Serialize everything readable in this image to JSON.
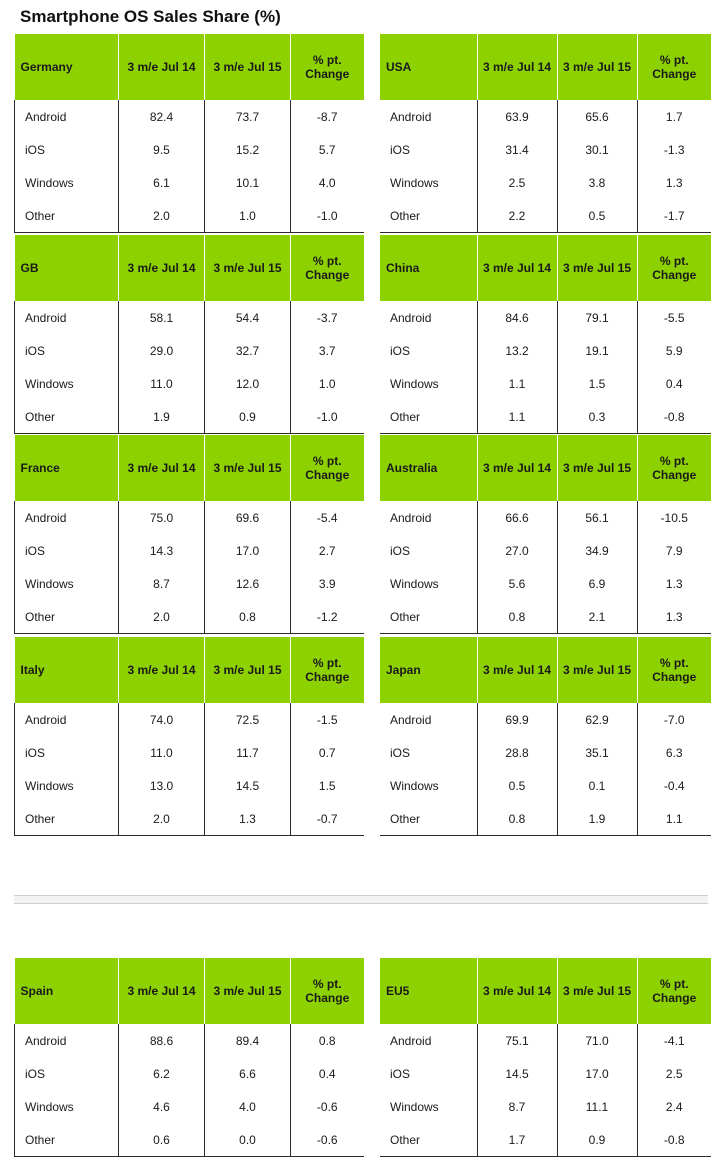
{
  "title": "Smartphone OS Sales Share (%)",
  "chart_data": {
    "type": "table",
    "title": "Smartphone OS Sales Share (%)",
    "columns": [
      "3 m/e Jul 14",
      "3 m/e Jul 15",
      "% pt. Change"
    ],
    "tables": [
      {
        "region": "Germany",
        "headers": [
          "3 m/e Jul 14",
          "3 m/e Jul 15",
          "% pt. Change"
        ],
        "rows": [
          {
            "os": "Android",
            "jul14": "82.4",
            "jul15": "73.7",
            "change": "-8.7"
          },
          {
            "os": "iOS",
            "jul14": "9.5",
            "jul15": "15.2",
            "change": "5.7"
          },
          {
            "os": "Windows",
            "jul14": "6.1",
            "jul15": "10.1",
            "change": "4.0"
          },
          {
            "os": "Other",
            "jul14": "2.0",
            "jul15": "1.0",
            "change": "-1.0"
          }
        ]
      },
      {
        "region": "USA",
        "headers": [
          "3 m/e Jul 14",
          "3 m/e Jul 15",
          "% pt. Change"
        ],
        "rows": [
          {
            "os": "Android",
            "jul14": "63.9",
            "jul15": "65.6",
            "change": "1.7"
          },
          {
            "os": "iOS",
            "jul14": "31.4",
            "jul15": "30.1",
            "change": "-1.3"
          },
          {
            "os": "Windows",
            "jul14": "2.5",
            "jul15": "3.8",
            "change": "1.3"
          },
          {
            "os": "Other",
            "jul14": "2.2",
            "jul15": "0.5",
            "change": "-1.7"
          }
        ]
      },
      {
        "region": "GB",
        "headers": [
          "3 m/e Jul 14",
          "3 m/e Jul 15",
          "% pt. Change"
        ],
        "rows": [
          {
            "os": "Android",
            "jul14": "58.1",
            "jul15": "54.4",
            "change": "-3.7"
          },
          {
            "os": "iOS",
            "jul14": "29.0",
            "jul15": "32.7",
            "change": "3.7"
          },
          {
            "os": "Windows",
            "jul14": "11.0",
            "jul15": "12.0",
            "change": "1.0"
          },
          {
            "os": "Other",
            "jul14": "1.9",
            "jul15": "0.9",
            "change": "-1.0"
          }
        ]
      },
      {
        "region": "China",
        "headers": [
          "3 m/e Jul 14",
          "3 m/e Jul 15",
          "% pt. Change"
        ],
        "rows": [
          {
            "os": "Android",
            "jul14": "84.6",
            "jul15": "79.1",
            "change": "-5.5"
          },
          {
            "os": "iOS",
            "jul14": "13.2",
            "jul15": "19.1",
            "change": "5.9"
          },
          {
            "os": "Windows",
            "jul14": "1.1",
            "jul15": "1.5",
            "change": "0.4"
          },
          {
            "os": "Other",
            "jul14": "1.1",
            "jul15": "0.3",
            "change": "-0.8"
          }
        ]
      },
      {
        "region": "France",
        "headers": [
          "3 m/e Jul 14",
          "3 m/e Jul 15",
          "% pt. Change"
        ],
        "rows": [
          {
            "os": "Android",
            "jul14": "75.0",
            "jul15": "69.6",
            "change": "-5.4"
          },
          {
            "os": "iOS",
            "jul14": "14.3",
            "jul15": "17.0",
            "change": "2.7"
          },
          {
            "os": "Windows",
            "jul14": "8.7",
            "jul15": "12.6",
            "change": "3.9"
          },
          {
            "os": "Other",
            "jul14": "2.0",
            "jul15": "0.8",
            "change": "-1.2"
          }
        ]
      },
      {
        "region": "Australia",
        "headers": [
          "3 m/e Jul 14",
          "3 m/e Jul 15",
          "% pt. Change"
        ],
        "rows": [
          {
            "os": "Android",
            "jul14": "66.6",
            "jul15": "56.1",
            "change": "-10.5"
          },
          {
            "os": "iOS",
            "jul14": "27.0",
            "jul15": "34.9",
            "change": "7.9"
          },
          {
            "os": "Windows",
            "jul14": "5.6",
            "jul15": "6.9",
            "change": "1.3"
          },
          {
            "os": "Other",
            "jul14": "0.8",
            "jul15": "2.1",
            "change": "1.3"
          }
        ]
      },
      {
        "region": "Italy",
        "headers": [
          "3 m/e Jul 14",
          "3 m/e Jul 15",
          "% pt. Change"
        ],
        "rows": [
          {
            "os": "Android",
            "jul14": "74.0",
            "jul15": "72.5",
            "change": "-1.5"
          },
          {
            "os": "iOS",
            "jul14": "11.0",
            "jul15": "11.7",
            "change": "0.7"
          },
          {
            "os": "Windows",
            "jul14": "13.0",
            "jul15": "14.5",
            "change": "1.5"
          },
          {
            "os": "Other",
            "jul14": "2.0",
            "jul15": "1.3",
            "change": "-0.7"
          }
        ]
      },
      {
        "region": "Japan",
        "headers": [
          "3 m/e Jul 14",
          "3 m/e Jul 15",
          "% pt. Change"
        ],
        "rows": [
          {
            "os": "Android",
            "jul14": "69.9",
            "jul15": "62.9",
            "change": "-7.0"
          },
          {
            "os": "iOS",
            "jul14": "28.8",
            "jul15": "35.1",
            "change": "6.3"
          },
          {
            "os": "Windows",
            "jul14": "0.5",
            "jul15": "0.1",
            "change": "-0.4"
          },
          {
            "os": "Other",
            "jul14": "0.8",
            "jul15": "1.9",
            "change": "1.1"
          }
        ]
      },
      {
        "region": "Spain",
        "headers": [
          "3 m/e Jul 14",
          "3 m/e Jul 15",
          "% pt. Change"
        ],
        "rows": [
          {
            "os": "Android",
            "jul14": "88.6",
            "jul15": "89.4",
            "change": "0.8"
          },
          {
            "os": "iOS",
            "jul14": "6.2",
            "jul15": "6.6",
            "change": "0.4"
          },
          {
            "os": "Windows",
            "jul14": "4.6",
            "jul15": "4.0",
            "change": "-0.6"
          },
          {
            "os": "Other",
            "jul14": "0.6",
            "jul15": "0.0",
            "change": "-0.6"
          }
        ]
      },
      {
        "region": "EU5",
        "headers": [
          "3 m/e Jul 14",
          "3 m/e Jul 15",
          "% pt. Change"
        ],
        "rows": [
          {
            "os": "Android",
            "jul14": "75.1",
            "jul15": "71.0",
            "change": "-4.1"
          },
          {
            "os": "iOS",
            "jul14": "14.5",
            "jul15": "17.0",
            "change": "2.5"
          },
          {
            "os": "Windows",
            "jul14": "8.7",
            "jul15": "11.1",
            "change": "2.4"
          },
          {
            "os": "Other",
            "jul14": "1.7",
            "jul15": "0.9",
            "change": "-0.8"
          }
        ]
      }
    ]
  }
}
